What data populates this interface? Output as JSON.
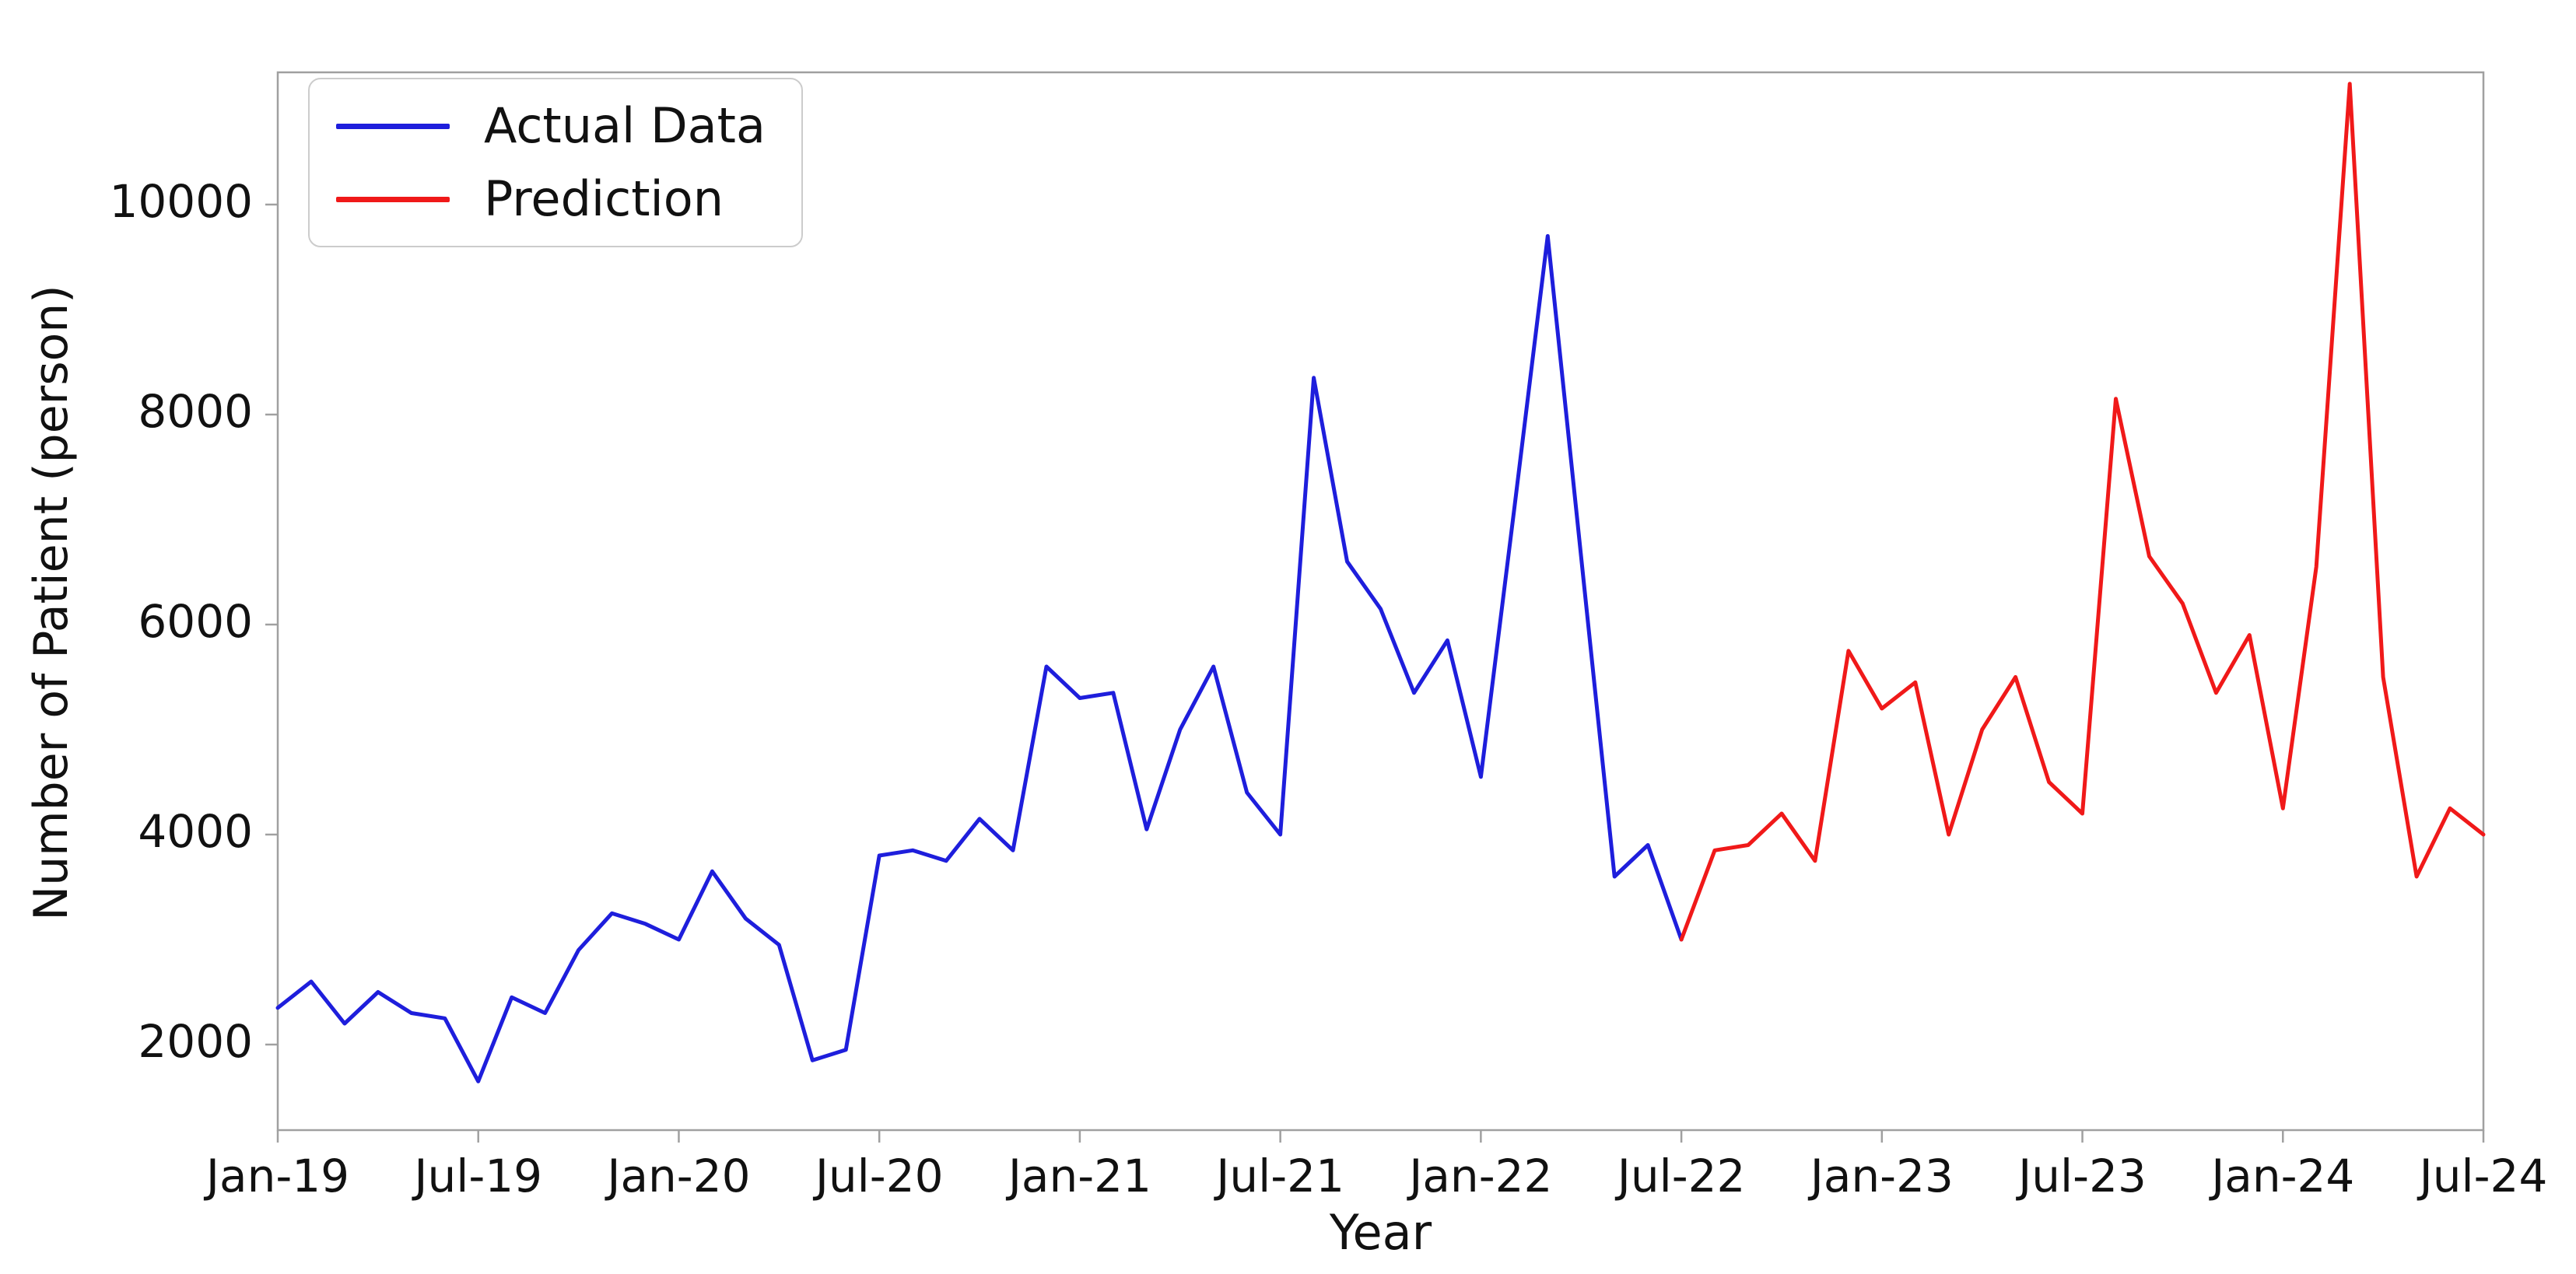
{
  "figure": {
    "background": "#ffffff",
    "axis_color": "#a0a0a0"
  },
  "chart_data": {
    "type": "line",
    "title": "",
    "xlabel": "Year",
    "ylabel": "Number of Patient (person)",
    "x_start": "Jan-19",
    "x_end": "Jul-24",
    "x_interval": "month",
    "x_tick_labels": [
      "Jan-19",
      "Jul-19",
      "Jan-20",
      "Jul-20",
      "Jan-21",
      "Jul-21",
      "Jan-22",
      "Jul-22",
      "Jan-23",
      "Jul-23",
      "Jan-24",
      "Jul-24"
    ],
    "y_ticks": [
      2000,
      4000,
      6000,
      8000,
      10000
    ],
    "y_tick_labels": [
      "2000",
      "4000",
      "6000",
      "8000",
      "10000"
    ],
    "ylim": [
      1185,
      11260
    ],
    "grid": false,
    "legend_position": "upper left",
    "series": [
      {
        "name": "Actual Data",
        "color": "#1e1edc",
        "start_index": 0,
        "months": [
          "Jan-19",
          "Feb-19",
          "Mar-19",
          "Apr-19",
          "May-19",
          "Jun-19",
          "Jul-19",
          "Aug-19",
          "Sep-19",
          "Oct-19",
          "Nov-19",
          "Dec-19",
          "Jan-20",
          "Feb-20",
          "Mar-20",
          "Apr-20",
          "May-20",
          "Jun-20",
          "Jul-20",
          "Aug-20",
          "Sep-20",
          "Oct-20",
          "Nov-20",
          "Dec-20",
          "Jan-21",
          "Feb-21",
          "Mar-21",
          "Apr-21",
          "May-21",
          "Jun-21",
          "Jul-21",
          "Aug-21",
          "Sep-21",
          "Oct-21",
          "Nov-21",
          "Dec-21",
          "Jan-22",
          "Feb-22",
          "Mar-22",
          "Apr-22",
          "May-22",
          "Jun-22",
          "Jul-22"
        ],
        "values": [
          2350,
          2600,
          2200,
          2500,
          2300,
          2250,
          1650,
          2450,
          2300,
          2900,
          3250,
          3150,
          3000,
          3650,
          3200,
          2950,
          1850,
          1950,
          3800,
          3850,
          3750,
          4150,
          3850,
          5600,
          5300,
          5350,
          4050,
          5000,
          5600,
          4400,
          4000,
          8350,
          6600,
          6150,
          5350,
          5850,
          4550,
          7100,
          9700,
          6650,
          3600,
          3900,
          3000
        ]
      },
      {
        "name": "Prediction",
        "color": "#f01919",
        "start_index": 42,
        "months": [
          "Jul-22",
          "Aug-22",
          "Sep-22",
          "Oct-22",
          "Nov-22",
          "Dec-22",
          "Jan-23",
          "Feb-23",
          "Mar-23",
          "Apr-23",
          "May-23",
          "Jun-23",
          "Jul-23",
          "Aug-23",
          "Sep-23",
          "Oct-23",
          "Nov-23",
          "Dec-23",
          "Jan-24",
          "Feb-24",
          "Mar-24",
          "Apr-24",
          "May-24",
          "Jun-24",
          "Jul-24"
        ],
        "values": [
          3000,
          3850,
          3900,
          4200,
          3750,
          5750,
          5200,
          5450,
          4000,
          5000,
          5500,
          4500,
          4200,
          8150,
          6650,
          6200,
          5350,
          5900,
          4250,
          6550,
          11150,
          5500,
          3600,
          4250,
          4000
        ]
      }
    ]
  }
}
